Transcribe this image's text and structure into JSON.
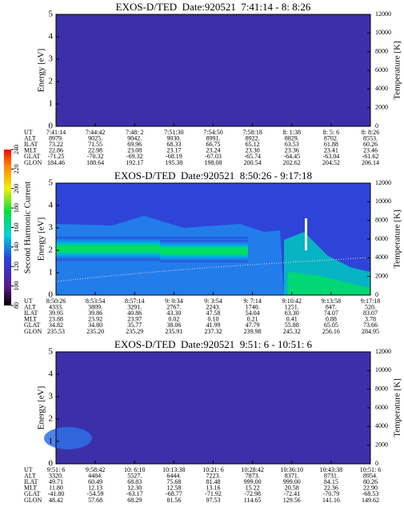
{
  "chart_data": [
    {
      "type": "spectrogram",
      "title": "EXOS-D/TED  Date:920521  7:41:14 - 8: 8:26",
      "ylabel": "Energy [eV]",
      "y2label": "Temperature [K]",
      "ylim": [
        0,
        5
      ],
      "yticks": [
        0,
        1,
        2,
        3,
        4,
        5
      ],
      "y2lim": [
        0,
        12000
      ],
      "y2ticks": [
        0,
        2000,
        4000,
        6000,
        8000,
        10000,
        12000
      ],
      "ephemeris": [
        {
          "label": "UT",
          "values": [
            "7:41:14",
            "7:44:42",
            "7:48: 2",
            "7:51:30",
            "7:54:50",
            "7:58:18",
            "8: 1:38",
            "8: 5: 6",
            "8: 8:26"
          ]
        },
        {
          "label": "ALT",
          "values": [
            "8979.",
            "9025.",
            "9042.",
            "9030.",
            "8991.",
            "8922.",
            "8829.",
            "8702.",
            "8553."
          ]
        },
        {
          "label": "ILAT",
          "values": [
            "73.22",
            "71.55",
            "69.96",
            "68.33",
            "66.75",
            "65.12",
            "63.53",
            "61.88",
            "60.26"
          ]
        },
        {
          "label": "MLT",
          "values": [
            "22.86",
            "22.98",
            "23.08",
            "23.17",
            "23.24",
            "23.30",
            "23.36",
            "23.41",
            "23.46"
          ]
        },
        {
          "label": "GLAT",
          "values": [
            "-71.25",
            "-70.32",
            "-69.32",
            "-68.19",
            "-67.03",
            "-65.74",
            "-64.45",
            "-63.04",
            "-61.62"
          ]
        },
        {
          "label": "GLON",
          "values": [
            "184.46",
            "188.64",
            "192.17",
            "195.38",
            "198.08",
            "200.54",
            "202.62",
            "204.52",
            "206.14"
          ]
        }
      ]
    },
    {
      "type": "spectrogram",
      "title": "EXOS-D/TED  Date:920521  8:50:26 - 9:17:18",
      "ylabel": "Energy [eV]",
      "y2label": "Temperature [K]",
      "ylim": [
        0,
        5
      ],
      "yticks": [
        0,
        1,
        2,
        3,
        4,
        5
      ],
      "y2lim": [
        0,
        12000
      ],
      "y2ticks": [
        0,
        2000,
        4000,
        6000,
        8000,
        10000,
        12000
      ],
      "colorbar": {
        "label": "Second Harmonic Current",
        "lim": [
          80,
          240
        ],
        "ticks": [
          80,
          100,
          120,
          140,
          160,
          180,
          200,
          220,
          240
        ]
      },
      "ephemeris": [
        {
          "label": "UT",
          "values": [
            "8:50:26",
            "8:53:54",
            "8:57:14",
            "9: 0:34",
            "9: 3:54",
            "9: 7:14",
            "9:10:42",
            "9:13:58",
            "9:17:18"
          ]
        },
        {
          "label": "ALT",
          "values": [
            "4333.",
            "3809.",
            "3291.",
            "2767.",
            "2243.",
            "1740.",
            "1251.",
            "847.",
            "520."
          ]
        },
        {
          "label": "ILAT",
          "values": [
            "39.95",
            "39.86",
            "40.86",
            "43.30",
            "47.58",
            "54.04",
            "63.30",
            "74.07",
            "83.07"
          ]
        },
        {
          "label": "MLT",
          "values": [
            "23.88",
            "23.92",
            "23.97",
            "0.02",
            "0.10",
            "0.21",
            "0.41",
            "0.88",
            "3.78"
          ]
        },
        {
          "label": "GLAT",
          "values": [
            "34.82",
            "34.80",
            "35.77",
            "38.06",
            "41.99",
            "47.79",
            "55.88",
            "65.05",
            "73.66"
          ]
        },
        {
          "label": "GLON",
          "values": [
            "235.53",
            "235.20",
            "235.29",
            "235.91",
            "237.32",
            "239.98",
            "245.32",
            "256.16",
            "284.95"
          ]
        }
      ]
    },
    {
      "type": "spectrogram",
      "title": "EXOS-D/TED  Date:920521  9:51: 6 - 10:51: 6",
      "ylabel": "Energy [eV]",
      "y2label": "Temperature [K]",
      "ylim": [
        0,
        5
      ],
      "yticks": [
        0,
        1,
        2,
        3,
        4,
        5
      ],
      "y2lim": [
        0,
        12000
      ],
      "y2ticks": [
        0,
        2000,
        4000,
        6000,
        8000,
        10000,
        12000
      ],
      "ephemeris": [
        {
          "label": "UT",
          "values": [
            "9:51: 6",
            "9:58:42",
            "10: 6:10",
            "10:13:38",
            "10:21: 6",
            "10:28:42",
            "10:36:10",
            "10:43:38",
            "10:51: 6"
          ]
        },
        {
          "label": "ALT",
          "values": [
            "3320.",
            "4484.",
            "5527.",
            "6444.",
            "7223.",
            "7873.",
            "8371.",
            "8731.",
            "8954."
          ]
        },
        {
          "label": "ILAT",
          "values": [
            "49.71",
            "60.49",
            "68.83",
            "75.68",
            "81.48",
            "999.00",
            "999.00",
            "84.15",
            "80.26"
          ]
        },
        {
          "label": "MLT",
          "values": [
            "11.80",
            "12.13",
            "12.30",
            "12.58",
            "13.16",
            "15.22",
            "20.58",
            "22.36",
            "22.90"
          ]
        },
        {
          "label": "GLAT",
          "values": [
            "-41.80",
            "-54.59",
            "-63.17",
            "-68.77",
            "-71.92",
            "-72.98",
            "-72.41",
            "-70.79",
            "-68.53"
          ]
        },
        {
          "label": "GLON",
          "values": [
            "48.42",
            "57.68",
            "68.29",
            "81.56",
            "97.53",
            "114.65",
            "129.56",
            "141.16",
            "149.62"
          ]
        }
      ]
    }
  ]
}
